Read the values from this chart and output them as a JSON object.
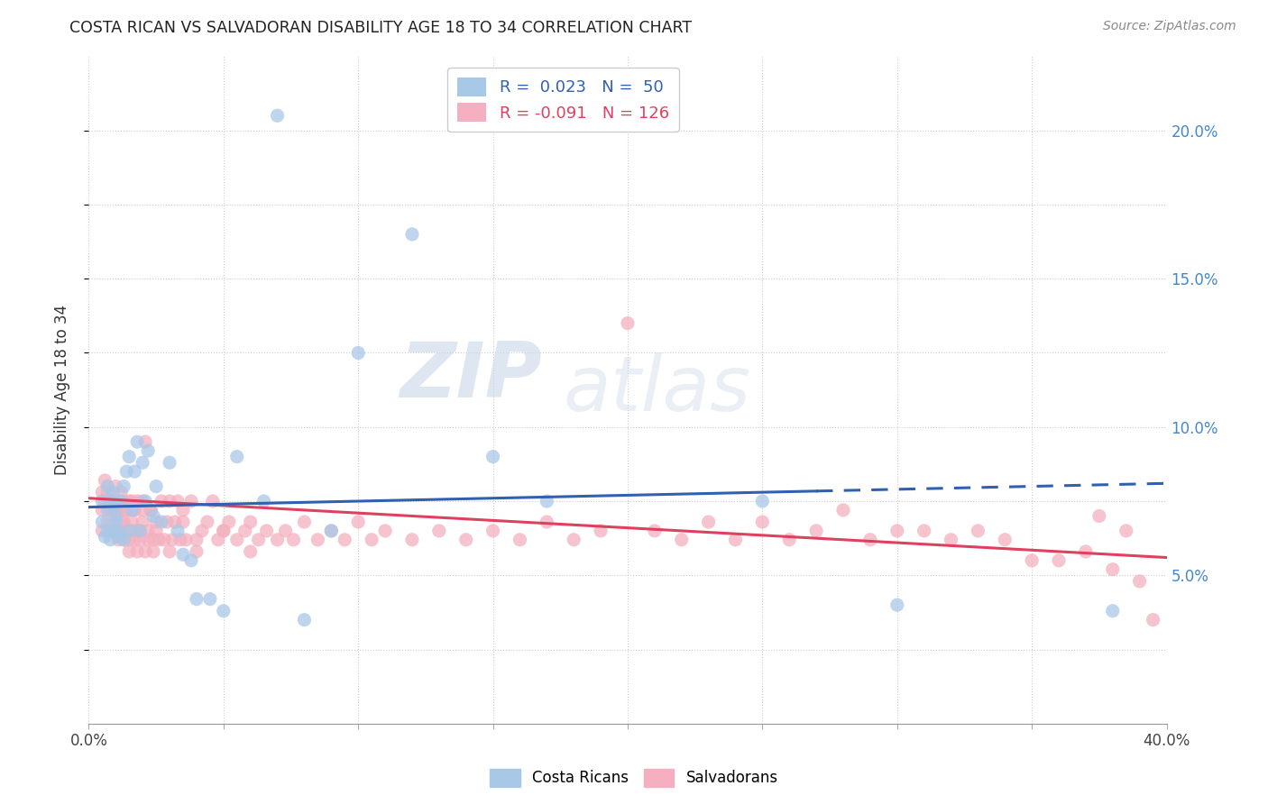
{
  "title": "COSTA RICAN VS SALVADORAN DISABILITY AGE 18 TO 34 CORRELATION CHART",
  "source": "Source: ZipAtlas.com",
  "ylabel": "Disability Age 18 to 34",
  "xlim": [
    0.0,
    0.4
  ],
  "ylim": [
    0.0,
    0.225
  ],
  "blue_R": "0.023",
  "blue_N": "50",
  "pink_R": "-0.091",
  "pink_N": "126",
  "blue_color": "#a8c8e8",
  "pink_color": "#f4b0c0",
  "line_blue_color": "#3060b0",
  "line_pink_color": "#e04060",
  "background_color": "#ffffff",
  "blue_line_start_x": 0.0,
  "blue_line_solid_end_x": 0.27,
  "blue_line_dash_end_x": 0.4,
  "blue_line_start_y": 0.073,
  "blue_line_end_y": 0.081,
  "pink_line_start_x": 0.0,
  "pink_line_end_x": 0.4,
  "pink_line_start_y": 0.076,
  "pink_line_end_y": 0.056,
  "blue_x": [
    0.005,
    0.005,
    0.006,
    0.007,
    0.007,
    0.007,
    0.008,
    0.008,
    0.009,
    0.009,
    0.01,
    0.01,
    0.01,
    0.011,
    0.011,
    0.012,
    0.013,
    0.013,
    0.014,
    0.015,
    0.015,
    0.016,
    0.017,
    0.018,
    0.019,
    0.02,
    0.021,
    0.022,
    0.024,
    0.025,
    0.027,
    0.03,
    0.033,
    0.035,
    0.038,
    0.04,
    0.045,
    0.05,
    0.055,
    0.065,
    0.07,
    0.08,
    0.09,
    0.1,
    0.12,
    0.15,
    0.17,
    0.25,
    0.3,
    0.38
  ],
  "blue_y": [
    0.068,
    0.075,
    0.063,
    0.065,
    0.072,
    0.08,
    0.062,
    0.075,
    0.065,
    0.078,
    0.068,
    0.074,
    0.07,
    0.065,
    0.063,
    0.075,
    0.062,
    0.08,
    0.085,
    0.065,
    0.09,
    0.072,
    0.085,
    0.095,
    0.065,
    0.088,
    0.075,
    0.092,
    0.07,
    0.08,
    0.068,
    0.088,
    0.065,
    0.057,
    0.055,
    0.042,
    0.042,
    0.038,
    0.09,
    0.075,
    0.205,
    0.035,
    0.065,
    0.125,
    0.165,
    0.09,
    0.075,
    0.075,
    0.04,
    0.038
  ],
  "pink_x": [
    0.005,
    0.005,
    0.006,
    0.007,
    0.008,
    0.008,
    0.009,
    0.009,
    0.01,
    0.01,
    0.01,
    0.011,
    0.011,
    0.012,
    0.012,
    0.013,
    0.013,
    0.014,
    0.014,
    0.015,
    0.015,
    0.016,
    0.016,
    0.017,
    0.017,
    0.018,
    0.018,
    0.019,
    0.02,
    0.02,
    0.021,
    0.022,
    0.023,
    0.024,
    0.025,
    0.026,
    0.027,
    0.028,
    0.029,
    0.03,
    0.031,
    0.032,
    0.033,
    0.034,
    0.035,
    0.036,
    0.038,
    0.04,
    0.042,
    0.044,
    0.046,
    0.048,
    0.05,
    0.052,
    0.055,
    0.058,
    0.06,
    0.063,
    0.066,
    0.07,
    0.073,
    0.076,
    0.08,
    0.085,
    0.09,
    0.095,
    0.1,
    0.105,
    0.11,
    0.12,
    0.13,
    0.14,
    0.15,
    0.16,
    0.17,
    0.18,
    0.19,
    0.2,
    0.21,
    0.22,
    0.23,
    0.24,
    0.25,
    0.26,
    0.27,
    0.28,
    0.29,
    0.3,
    0.31,
    0.32,
    0.33,
    0.34,
    0.35,
    0.36,
    0.37,
    0.375,
    0.38,
    0.385,
    0.39,
    0.395,
    0.005,
    0.006,
    0.007,
    0.008,
    0.009,
    0.01,
    0.011,
    0.012,
    0.013,
    0.014,
    0.015,
    0.016,
    0.017,
    0.018,
    0.019,
    0.02,
    0.021,
    0.022,
    0.023,
    0.024,
    0.025,
    0.03,
    0.035,
    0.04,
    0.05,
    0.06
  ],
  "pink_y": [
    0.072,
    0.065,
    0.075,
    0.068,
    0.072,
    0.065,
    0.075,
    0.068,
    0.072,
    0.065,
    0.08,
    0.062,
    0.075,
    0.068,
    0.065,
    0.075,
    0.062,
    0.072,
    0.065,
    0.075,
    0.062,
    0.068,
    0.075,
    0.062,
    0.072,
    0.065,
    0.075,
    0.062,
    0.068,
    0.075,
    0.095,
    0.062,
    0.072,
    0.062,
    0.068,
    0.062,
    0.075,
    0.062,
    0.068,
    0.075,
    0.062,
    0.068,
    0.075,
    0.062,
    0.068,
    0.062,
    0.075,
    0.062,
    0.065,
    0.068,
    0.075,
    0.062,
    0.065,
    0.068,
    0.062,
    0.065,
    0.068,
    0.062,
    0.065,
    0.062,
    0.065,
    0.062,
    0.068,
    0.062,
    0.065,
    0.062,
    0.068,
    0.062,
    0.065,
    0.062,
    0.065,
    0.062,
    0.065,
    0.062,
    0.068,
    0.062,
    0.065,
    0.135,
    0.065,
    0.062,
    0.068,
    0.062,
    0.068,
    0.062,
    0.065,
    0.072,
    0.062,
    0.065,
    0.065,
    0.062,
    0.065,
    0.062,
    0.055,
    0.055,
    0.058,
    0.07,
    0.052,
    0.065,
    0.048,
    0.035,
    0.078,
    0.082,
    0.078,
    0.072,
    0.065,
    0.07,
    0.072,
    0.078,
    0.068,
    0.072,
    0.058,
    0.065,
    0.072,
    0.058,
    0.065,
    0.072,
    0.058,
    0.065,
    0.072,
    0.058,
    0.065,
    0.058,
    0.072,
    0.058,
    0.065,
    0.058
  ]
}
